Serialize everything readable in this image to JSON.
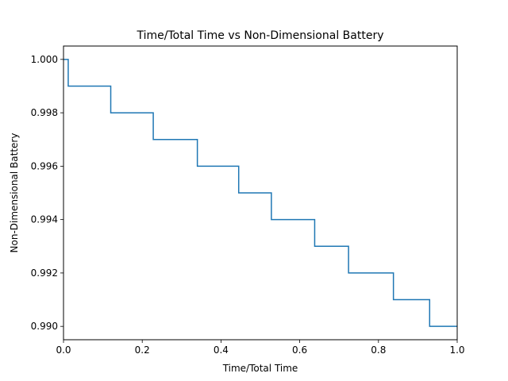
{
  "chart_data": {
    "type": "line",
    "title": "Time/Total Time vs Non-Dimensional Battery",
    "xlabel": "Time/Total Time",
    "ylabel": "Non-Dimensional Battery",
    "xlim": [
      0,
      1
    ],
    "ylim": [
      0.9895,
      1.0005
    ],
    "grid": false,
    "x_ticks": [
      "0.0",
      "0.2",
      "0.4",
      "0.6",
      "0.8",
      "1.0"
    ],
    "y_ticks": [
      "0.990",
      "0.992",
      "0.994",
      "0.996",
      "0.998",
      "1.000"
    ],
    "series": [
      {
        "color": "#1f77b4",
        "step_x": [
          0.0,
          0.012,
          0.12,
          0.228,
          0.34,
          0.445,
          0.528,
          0.638,
          0.724,
          0.838,
          0.93,
          1.0
        ],
        "step_y": [
          1.0,
          0.999,
          0.998,
          0.997,
          0.996,
          0.995,
          0.994,
          0.993,
          0.992,
          0.991,
          0.99,
          0.99
        ]
      }
    ]
  }
}
